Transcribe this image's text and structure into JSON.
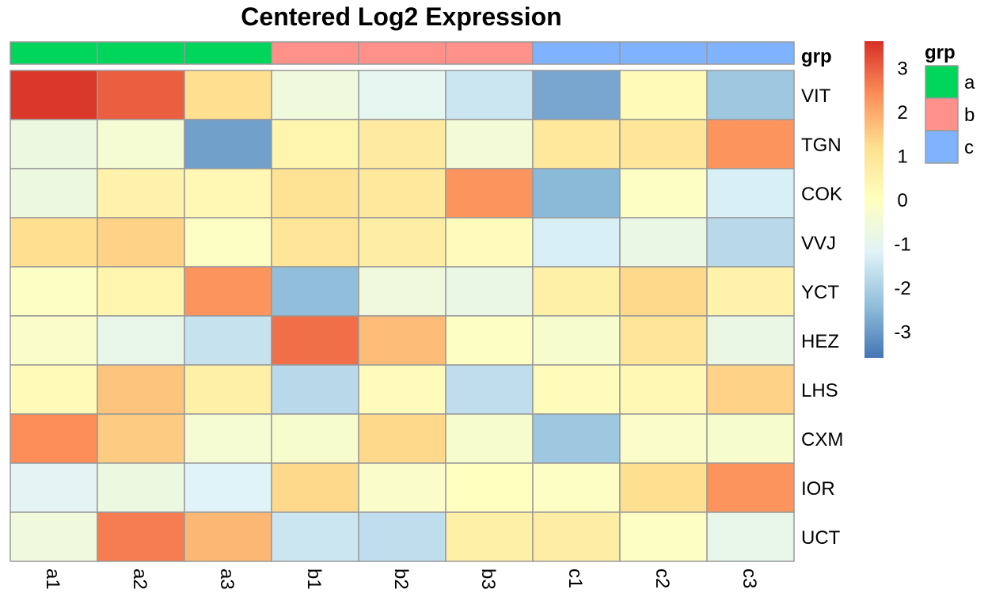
{
  "chart_data": {
    "type": "heatmap",
    "title": "Centered Log2 Expression",
    "rows": [
      "VIT",
      "TGN",
      "COK",
      "VVJ",
      "YCT",
      "HEZ",
      "LHS",
      "CXM",
      "IOR",
      "UCT"
    ],
    "columns": [
      "a1",
      "a2",
      "a3",
      "b1",
      "b2",
      "b3",
      "c1",
      "c2",
      "c3"
    ],
    "values": [
      [
        3.5,
        3.0,
        1.2,
        -0.6,
        -1.0,
        -1.5,
        -2.8,
        0.2,
        -2.2
      ],
      [
        -0.7,
        -0.4,
        -2.9,
        0.4,
        0.8,
        -0.5,
        0.9,
        1.0,
        2.3
      ],
      [
        -0.7,
        0.5,
        0.3,
        1.1,
        0.9,
        2.3,
        -2.5,
        -0.1,
        -1.3
      ],
      [
        1.2,
        1.4,
        -0.1,
        1.0,
        0.7,
        0.1,
        -1.3,
        -0.8,
        -1.8
      ],
      [
        -0.1,
        0.4,
        2.3,
        -2.4,
        -0.6,
        -0.8,
        0.6,
        1.3,
        0.5
      ],
      [
        -0.2,
        -0.9,
        -1.6,
        2.8,
        1.7,
        -0.1,
        -0.3,
        1.0,
        -0.8
      ],
      [
        0.2,
        1.6,
        0.6,
        -1.8,
        0.1,
        -1.7,
        0.1,
        0.3,
        1.4
      ],
      [
        2.4,
        1.5,
        -0.4,
        -0.3,
        1.3,
        -0.3,
        -2.2,
        -0.2,
        -0.3
      ],
      [
        -1.1,
        -0.7,
        -1.2,
        1.3,
        -0.2,
        0.0,
        -0.1,
        1.2,
        2.3
      ],
      [
        -0.6,
        2.6,
        1.8,
        -1.5,
        -1.7,
        0.6,
        0.7,
        -0.1,
        -0.9
      ]
    ],
    "annotation": {
      "name": "grp",
      "groups": [
        "a",
        "a",
        "a",
        "b",
        "b",
        "b",
        "c",
        "c",
        "c"
      ],
      "colors": {
        "a": "#00D65C",
        "b": "#FF918A",
        "c": "#80B3FF"
      }
    },
    "legend": {
      "ticks": [
        3,
        2,
        1,
        0,
        -1,
        -2,
        -3
      ],
      "range": [
        -3.6,
        3.6
      ],
      "palette": [
        "#4575B4",
        "#91BFDB",
        "#E0F3F8",
        "#FFFFBF",
        "#FEE090",
        "#FC8D59",
        "#D73027"
      ]
    },
    "grid_color": "#999999"
  }
}
